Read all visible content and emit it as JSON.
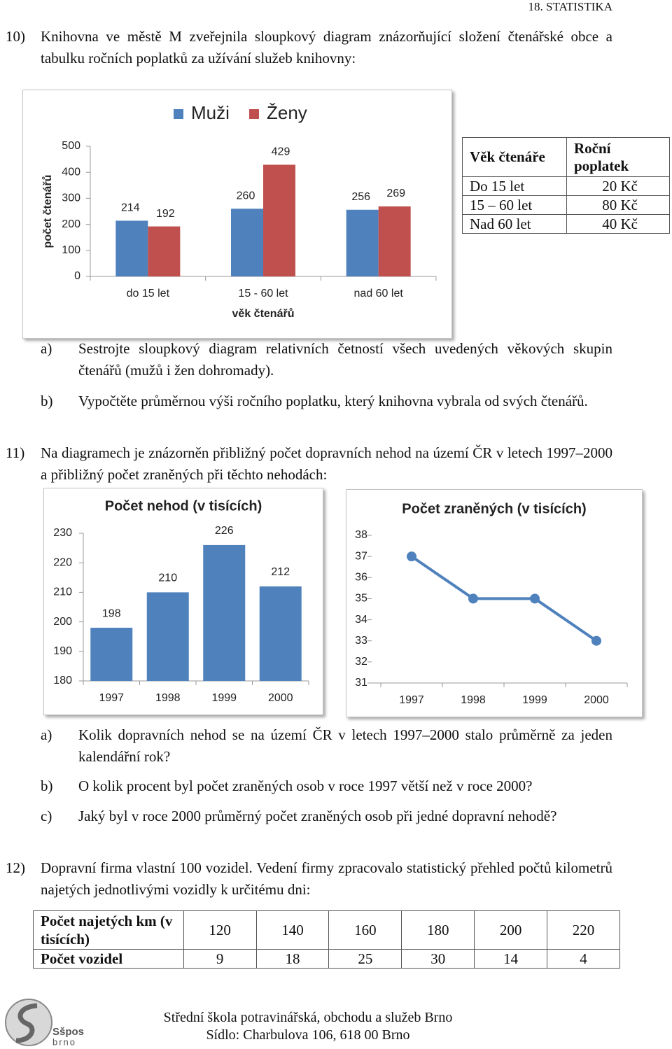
{
  "header": "18. STATISTIKA",
  "tasks": [
    {
      "number": "10)",
      "text": "Knihovna ve městě M zveřejnila sloupkový diagram znázorňující složení čtenářské obce a tabulku ročních poplatků za užívání služeb knihovny:",
      "questions": [
        {
          "label": "a)",
          "text": "Sestrojte sloupkový diagram relativních četností všech uvedených věkových skupin čtenářů (mužů i žen dohromady)."
        },
        {
          "label": "b)",
          "text": "Vypočtěte průměrnou výši ročního poplatku, který knihovna vybrala od svých čtenářů."
        }
      ]
    },
    {
      "number": "11)",
      "text": "Na diagramech je znázorněn přibližný počet dopravních nehod na území ČR v letech 1997–2000 a přibližný počet zraněných při těchto nehodách:",
      "questions": [
        {
          "label": "a)",
          "text": "Kolik dopravních nehod se na území ČR v letech 1997–2000 stalo průměrně za jeden kalendářní rok?"
        },
        {
          "label": "b)",
          "text": "O kolik procent byl počet zraněných osob v roce 1997 větší než v roce 2000?"
        },
        {
          "label": "c)",
          "text": "Jaký byl v roce 2000 průměrný počet zraněných osob při jedné dopravní nehodě?"
        }
      ]
    },
    {
      "number": "12)",
      "text": "Dopravní firma vlastní 100 vozidel. Vedení firmy zpracovalo statistický přehled počtů kilometrů najetých jednotlivými vozidly k určitému dni:",
      "questions": []
    }
  ],
  "chart_data": [
    {
      "type": "bar",
      "y_label": "počet čtenářů",
      "x_label": "věk čtenářů",
      "categories": [
        "do 15 let",
        "15 - 60 let",
        "nad 60 let"
      ],
      "series": [
        {
          "name": "Muži",
          "color": "#4f81bd",
          "values": [
            214,
            260,
            256
          ]
        },
        {
          "name": "Ženy",
          "color": "#c0504d",
          "values": [
            192,
            429,
            269
          ]
        }
      ],
      "ylim": [
        0,
        500
      ],
      "yticks": [
        0,
        100,
        200,
        300,
        400,
        500
      ],
      "legend": "top",
      "data_labels": true
    },
    {
      "type": "bar",
      "title": "Počet nehod (v tisících)",
      "categories": [
        "1997",
        "1998",
        "1999",
        "2000"
      ],
      "values": [
        198,
        210,
        226,
        212
      ],
      "color": "#4f81bd",
      "ylim": [
        180,
        230
      ],
      "yticks": [
        180,
        190,
        200,
        210,
        220,
        230
      ],
      "data_labels": true
    },
    {
      "type": "line",
      "title": "Počet zraněných (v tisících)",
      "categories": [
        "1997",
        "1998",
        "1999",
        "2000"
      ],
      "values": [
        37,
        35,
        35,
        33
      ],
      "color": "#4f81bd",
      "ylim": [
        31,
        38
      ],
      "yticks": [
        31,
        32,
        33,
        34,
        35,
        36,
        37,
        38
      ],
      "data_labels": false
    }
  ],
  "fee_table": {
    "columns": [
      "Věk čtenáře",
      "Roční poplatek"
    ],
    "rows": [
      [
        "Do 15 let",
        "20 Kč"
      ],
      [
        "15 – 60 let",
        "80 Kč"
      ],
      [
        "Nad 60 let",
        "40 Kč"
      ]
    ]
  },
  "km_table": {
    "rows": [
      {
        "label": "Počet najetých km (v tisících)",
        "values": [
          120,
          140,
          160,
          180,
          200,
          220
        ]
      },
      {
        "label": "Počet vozidel",
        "values": [
          9,
          18,
          25,
          30,
          14,
          4
        ]
      }
    ]
  },
  "footer": {
    "logo": [
      "Sšpos",
      "brno"
    ],
    "lines": [
      "Střední škola potravinářská, obchodu a služeb Brno",
      "Sídlo: Charbulova 106, 618 00 Brno"
    ]
  }
}
